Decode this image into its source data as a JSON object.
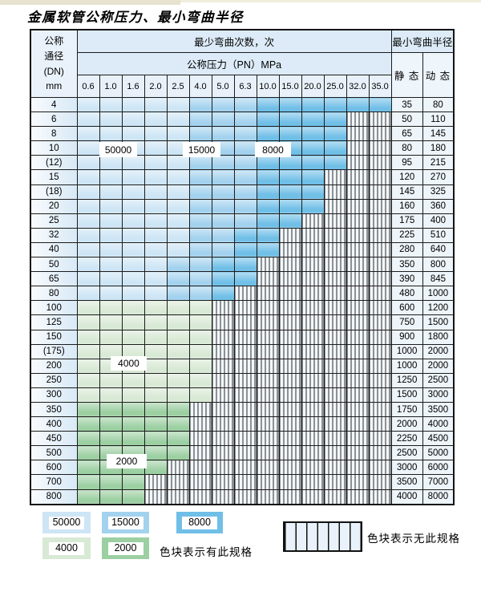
{
  "title": "金属软管公称压力、最小弯曲半径",
  "table": {
    "header": {
      "dn_lines": [
        "公称",
        "通径",
        "(DN)",
        "mm"
      ],
      "bend_count": "最少弯曲次数，次",
      "pressure": "公称压力（PN）MPa",
      "pressure_values": [
        "0.6",
        "1.0",
        "1.6",
        "2.0",
        "2.5",
        "4.0",
        "5.0",
        "6.3",
        "10.0",
        "15.0",
        "20.0",
        "25.0",
        "32.0",
        "35.0"
      ],
      "bend_radius": "最小弯曲半径",
      "static_label": "静 态",
      "dynamic_label": "动 态"
    },
    "zone_meaning": {
      "L": "50000次区",
      "M": "15000次区",
      "D": "8000次区",
      "G": "4000次区",
      "g": "2000次区",
      "H": "无此规格"
    },
    "rows": [
      {
        "dn": "4",
        "zones": "LLLLLMMMDDDDDD",
        "static": "35",
        "dynamic": "80"
      },
      {
        "dn": "6",
        "zones": "LLLLLMMMDDDDHH",
        "static": "50",
        "dynamic": "110"
      },
      {
        "dn": "8",
        "zones": "LLLLLMMMDDDDHH",
        "static": "65",
        "dynamic": "145"
      },
      {
        "dn": "10",
        "zones": "LLLLLMMMDDDDHH",
        "static": "80",
        "dynamic": "180"
      },
      {
        "dn": "(12)",
        "zones": "LLLLLMMMDDDDHH",
        "static": "95",
        "dynamic": "215"
      },
      {
        "dn": "15",
        "zones": "LLLLLMMMDDDHHH",
        "static": "120",
        "dynamic": "270"
      },
      {
        "dn": "(18)",
        "zones": "LLLLLMMMDDDHHH",
        "static": "145",
        "dynamic": "325"
      },
      {
        "dn": "20",
        "zones": "LLLLLMMMDDDHHH",
        "static": "160",
        "dynamic": "360"
      },
      {
        "dn": "25",
        "zones": "LLLLLMMMDDHHHH",
        "static": "175",
        "dynamic": "400"
      },
      {
        "dn": "32",
        "zones": "LLLLLMMDDHHHHH",
        "static": "225",
        "dynamic": "510"
      },
      {
        "dn": "40",
        "zones": "LLLLLMMDDHHHHH",
        "static": "280",
        "dynamic": "640"
      },
      {
        "dn": "50",
        "zones": "LLLLMMDDHHHHHH",
        "static": "350",
        "dynamic": "800"
      },
      {
        "dn": "65",
        "zones": "LLLLMMDDHHHHHH",
        "static": "390",
        "dynamic": "845"
      },
      {
        "dn": "80",
        "zones": "LLLLMMDHHHHHHH",
        "static": "480",
        "dynamic": "1000"
      },
      {
        "dn": "100",
        "zones": "GGGGGGHHHHHHHH",
        "static": "600",
        "dynamic": "1200"
      },
      {
        "dn": "125",
        "zones": "GGGGGGHHHHHHHH",
        "static": "750",
        "dynamic": "1500"
      },
      {
        "dn": "150",
        "zones": "GGGGGGHHHHHHHH",
        "static": "900",
        "dynamic": "1800"
      },
      {
        "dn": "(175)",
        "zones": "GGGGGGHHHHHHHH",
        "static": "1000",
        "dynamic": "2000"
      },
      {
        "dn": "200",
        "zones": "GGGGGGHHHHHHHH",
        "static": "1000",
        "dynamic": "2000"
      },
      {
        "dn": "250",
        "zones": "GGGGGGHHHHHHHH",
        "static": "1250",
        "dynamic": "2500"
      },
      {
        "dn": "300",
        "zones": "GGGGGGHHHHHHHH",
        "static": "1500",
        "dynamic": "3000"
      },
      {
        "dn": "350",
        "zones": "gggggHHHHHHHHH",
        "static": "1750",
        "dynamic": "3500"
      },
      {
        "dn": "400",
        "zones": "gggggHHHHHHHHH",
        "static": "2000",
        "dynamic": "4000"
      },
      {
        "dn": "450",
        "zones": "gggggHHHHHHHHH",
        "static": "2250",
        "dynamic": "4500"
      },
      {
        "dn": "500",
        "zones": "gggggHHHHHHHHH",
        "static": "2500",
        "dynamic": "5000"
      },
      {
        "dn": "600",
        "zones": "ggggHHHHHHHHHH",
        "static": "3000",
        "dynamic": "6000"
      },
      {
        "dn": "700",
        "zones": "gggHHHHHHHHHHH",
        "static": "3500",
        "dynamic": "7000"
      },
      {
        "dn": "800",
        "zones": "gggHHHHHHHHHHH",
        "static": "4000",
        "dynamic": "8000"
      }
    ]
  },
  "overlay_labels": [
    "50000",
    "15000",
    "8000",
    "4000",
    "2000"
  ],
  "zone_colors": {
    "blue_50000": "#cde5f5",
    "blue_15000": "#a3d2ee",
    "blue_8000": "#70bfe7",
    "green_4000": "#d8e9d5",
    "green_2000": "#9ccfa2"
  },
  "legend": {
    "blocks": [
      {
        "label": "50000",
        "color": "#cde5f5"
      },
      {
        "label": "15000",
        "color": "#a3d2ee"
      },
      {
        "label": "8000",
        "color": "#70bfe7"
      },
      {
        "label": "4000",
        "color": "#d8e9d5"
      },
      {
        "label": "2000",
        "color": "#9ccfa2"
      }
    ],
    "available_note": "色块表示有此规格",
    "unavailable_note": "色块表示无此规格"
  }
}
